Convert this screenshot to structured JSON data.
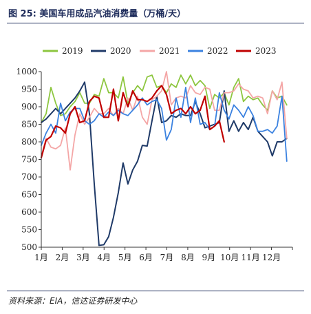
{
  "title": "图 25:  美国车用成品汽油消费量（万桶/天）",
  "source": "资料来源：EIA，信达证券研发中心",
  "chart_data": {
    "type": "line",
    "title": "美国车用成品汽油消费量（万桶/天）",
    "xlabel": "",
    "ylabel": "",
    "ylim": [
      500,
      1000
    ],
    "yticks": [
      "500",
      "550",
      "600",
      "650",
      "700",
      "750",
      "800",
      "850",
      "900",
      "950",
      "1000"
    ],
    "xlim": [
      1,
      13
    ],
    "xticks": [
      "1月",
      "2月",
      "3月",
      "4月",
      "5月",
      "6月",
      "7月",
      "8月",
      "9月",
      "10月",
      "11月",
      "12月"
    ],
    "legend_position": "top",
    "grid": false,
    "series": [
      {
        "name": "2019",
        "color": "#8dc63f",
        "x": [
          1.0,
          1.23,
          1.46,
          1.69,
          1.92,
          2.15,
          2.38,
          2.61,
          2.84,
          3.07,
          3.3,
          3.53,
          3.76,
          3.99,
          4.22,
          4.45,
          4.68,
          4.91,
          5.14,
          5.37,
          5.6,
          5.83,
          6.06,
          6.29,
          6.52,
          6.75,
          6.98,
          7.21,
          7.44,
          7.67,
          7.9,
          8.13,
          8.36,
          8.59,
          8.82,
          9.05,
          9.28,
          9.51,
          9.74,
          9.97,
          10.2,
          10.43,
          10.66,
          10.89,
          11.12,
          11.35,
          11.58,
          11.81,
          12.04,
          12.27,
          12.5,
          12.73
        ],
        "values": [
          855,
          880,
          955,
          910,
          875,
          880,
          900,
          915,
          940,
          910,
          910,
          935,
          930,
          980,
          940,
          940,
          925,
          985,
          910,
          940,
          960,
          945,
          985,
          990,
          955,
          960,
          940,
          965,
          955,
          990,
          965,
          990,
          960,
          975,
          960,
          895,
          935,
          925,
          940,
          905,
          955,
          980,
          915,
          930,
          920,
          925,
          905,
          890,
          945,
          925,
          930,
          905
        ]
      },
      {
        "name": "2020",
        "color": "#1f3a68",
        "x": [
          1.0,
          1.23,
          1.46,
          1.69,
          1.92,
          2.15,
          2.38,
          2.61,
          2.84,
          3.07,
          3.3,
          3.53,
          3.76,
          3.99,
          4.22,
          4.45,
          4.68,
          4.91,
          5.14,
          5.37,
          5.6,
          5.83,
          6.06,
          6.29,
          6.52,
          6.75,
          6.98,
          7.21,
          7.44,
          7.67,
          7.9,
          8.13,
          8.36,
          8.59,
          8.82,
          9.05,
          9.28,
          9.51,
          9.74,
          9.97,
          10.2,
          10.43,
          10.66,
          10.89,
          11.12,
          11.35,
          11.58,
          11.81,
          12.04,
          12.27,
          12.5,
          12.73
        ],
        "values": [
          855,
          865,
          880,
          895,
          880,
          895,
          910,
          925,
          945,
          970,
          880,
          680,
          505,
          507,
          530,
          585,
          655,
          740,
          680,
          720,
          745,
          790,
          788,
          860,
          930,
          855,
          860,
          875,
          870,
          880,
          875,
          875,
          915,
          880,
          840,
          845,
          850,
          855,
          945,
          830,
          860,
          830,
          855,
          835,
          870,
          830,
          815,
          800,
          760,
          800,
          800,
          810
        ]
      },
      {
        "name": "2021",
        "color": "#f4a6a6",
        "x": [
          1.0,
          1.23,
          1.46,
          1.69,
          1.92,
          2.15,
          2.38,
          2.61,
          2.84,
          3.07,
          3.3,
          3.53,
          3.76,
          3.99,
          4.22,
          4.45,
          4.68,
          4.91,
          5.14,
          5.37,
          5.6,
          5.83,
          6.06,
          6.29,
          6.52,
          6.75,
          6.98,
          7.21,
          7.44,
          7.67,
          7.9,
          8.13,
          8.36,
          8.59,
          8.82,
          9.05,
          9.28,
          9.51,
          9.74,
          9.97,
          10.2,
          10.43,
          10.66,
          10.89,
          11.12,
          11.35,
          11.58,
          11.81,
          12.04,
          12.27,
          12.5,
          12.73
        ],
        "values": [
          760,
          810,
          785,
          780,
          790,
          840,
          720,
          820,
          880,
          850,
          870,
          895,
          880,
          880,
          895,
          875,
          895,
          880,
          925,
          890,
          930,
          870,
          850,
          920,
          930,
          945,
          1000,
          905,
          925,
          930,
          925,
          960,
          940,
          935,
          955,
          950,
          890,
          890,
          940,
          940,
          945,
          965,
          950,
          945,
          925,
          930,
          925,
          880,
          945,
          920,
          970,
          810
        ]
      },
      {
        "name": "2022",
        "color": "#3b82e0",
        "x": [
          1.0,
          1.23,
          1.46,
          1.69,
          1.92,
          2.15,
          2.38,
          2.61,
          2.84,
          3.07,
          3.3,
          3.53,
          3.76,
          3.99,
          4.22,
          4.45,
          4.68,
          4.91,
          5.14,
          5.37,
          5.6,
          5.83,
          6.06,
          6.29,
          6.52,
          6.75,
          6.98,
          7.21,
          7.44,
          7.67,
          7.9,
          8.13,
          8.36,
          8.59,
          8.82,
          9.05,
          9.28,
          9.51,
          9.74,
          9.97,
          10.2,
          10.43,
          10.66,
          10.89,
          11.12,
          11.35,
          11.58,
          11.81,
          12.04,
          12.27,
          12.5,
          12.73
        ],
        "values": [
          790,
          825,
          850,
          825,
          910,
          860,
          885,
          895,
          895,
          860,
          850,
          860,
          880,
          870,
          885,
          875,
          890,
          880,
          875,
          890,
          905,
          925,
          905,
          915,
          920,
          895,
          805,
          835,
          925,
          870,
          955,
          855,
          925,
          850,
          855,
          835,
          845,
          940,
          890,
          865,
          905,
          890,
          870,
          900,
          875,
          830,
          830,
          835,
          825,
          845,
          930,
          745
        ]
      },
      {
        "name": "2023",
        "color": "#c00000",
        "x": [
          1.0,
          1.23,
          1.46,
          1.69,
          1.92,
          2.15,
          2.38,
          2.61,
          2.84,
          3.07,
          3.3,
          3.53,
          3.76,
          3.99,
          4.22,
          4.45,
          4.68,
          4.91,
          5.14,
          5.37,
          5.6,
          5.83,
          6.06,
          6.29,
          6.52,
          6.75,
          6.98,
          7.21,
          7.44,
          7.67,
          7.9,
          8.13,
          8.36,
          8.59,
          8.82,
          9.05,
          9.28,
          9.51,
          9.74
        ],
        "values": [
          755,
          805,
          815,
          845,
          840,
          825,
          880,
          900,
          855,
          860,
          915,
          930,
          925,
          870,
          870,
          950,
          860,
          940,
          900,
          945,
          920,
          920,
          915,
          925,
          945,
          960,
          935,
          880,
          890,
          895,
          880,
          900,
          880,
          890,
          930,
          835,
          845,
          860,
          800
        ]
      }
    ]
  }
}
